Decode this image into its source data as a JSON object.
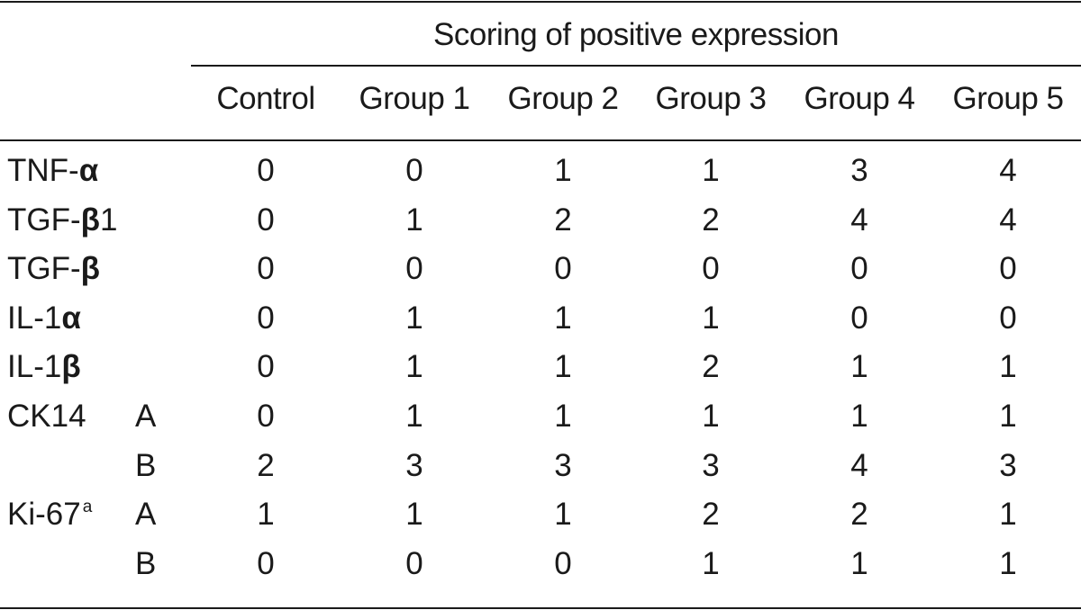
{
  "table": {
    "spanner": "Scoring of positive expression",
    "columns": [
      "Control",
      "Group 1",
      "Group 2",
      "Group 3",
      "Group 4",
      "Group 5"
    ],
    "rows": [
      {
        "marker_base": "TNF-",
        "marker_symbol": "α",
        "marker_tail": "",
        "marker_note": "",
        "sub": "",
        "values": [
          "0",
          "0",
          "1",
          "1",
          "3",
          "4"
        ]
      },
      {
        "marker_base": "TGF-",
        "marker_symbol": "β",
        "marker_tail": "1",
        "marker_note": "",
        "sub": "",
        "values": [
          "0",
          "1",
          "2",
          "2",
          "4",
          "4"
        ]
      },
      {
        "marker_base": "TGF-",
        "marker_symbol": "β",
        "marker_tail": "",
        "marker_note": "",
        "sub": "",
        "values": [
          "0",
          "0",
          "0",
          "0",
          "0",
          "0"
        ]
      },
      {
        "marker_base": "IL-1",
        "marker_symbol": "α",
        "marker_tail": "",
        "marker_note": "",
        "sub": "",
        "values": [
          "0",
          "1",
          "1",
          "1",
          "0",
          "0"
        ]
      },
      {
        "marker_base": "IL-1",
        "marker_symbol": "β",
        "marker_tail": "",
        "marker_note": "",
        "sub": "",
        "values": [
          "0",
          "1",
          "1",
          "2",
          "1",
          "1"
        ]
      },
      {
        "marker_base": "CK14",
        "marker_symbol": "",
        "marker_tail": "",
        "marker_note": "",
        "sub": "A",
        "values": [
          "0",
          "1",
          "1",
          "1",
          "1",
          "1"
        ]
      },
      {
        "marker_base": "",
        "marker_symbol": "",
        "marker_tail": "",
        "marker_note": "",
        "sub": "B",
        "values": [
          "2",
          "3",
          "3",
          "3",
          "4",
          "3"
        ]
      },
      {
        "marker_base": "Ki-67",
        "marker_symbol": "",
        "marker_tail": "",
        "marker_note": "a",
        "sub": "A",
        "values": [
          "1",
          "1",
          "1",
          "2",
          "2",
          "1"
        ]
      },
      {
        "marker_base": "",
        "marker_symbol": "",
        "marker_tail": "",
        "marker_note": "",
        "sub": "B",
        "values": [
          "0",
          "0",
          "0",
          "1",
          "1",
          "1"
        ]
      }
    ]
  }
}
